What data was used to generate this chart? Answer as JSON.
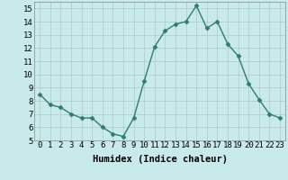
{
  "x": [
    0,
    1,
    2,
    3,
    4,
    5,
    6,
    7,
    8,
    9,
    10,
    11,
    12,
    13,
    14,
    15,
    16,
    17,
    18,
    19,
    20,
    21,
    22,
    23
  ],
  "y": [
    8.5,
    7.7,
    7.5,
    7.0,
    6.7,
    6.7,
    6.0,
    5.5,
    5.3,
    6.7,
    9.5,
    12.1,
    13.3,
    13.8,
    14.0,
    15.2,
    13.5,
    14.0,
    12.3,
    11.4,
    9.3,
    8.1,
    7.0,
    6.7
  ],
  "line_color": "#2e7d6e",
  "marker": "D",
  "marker_size": 2.5,
  "linewidth": 1.0,
  "xlabel": "Humidex (Indice chaleur)",
  "xlim": [
    -0.5,
    23.5
  ],
  "ylim": [
    5,
    15.5
  ],
  "yticks": [
    5,
    6,
    7,
    8,
    9,
    10,
    11,
    12,
    13,
    14,
    15
  ],
  "xticks": [
    0,
    1,
    2,
    3,
    4,
    5,
    6,
    7,
    8,
    9,
    10,
    11,
    12,
    13,
    14,
    15,
    16,
    17,
    18,
    19,
    20,
    21,
    22,
    23
  ],
  "bg_color": "#c8eaea",
  "grid_color": "#b0c8c8",
  "grid_lw": 0.5,
  "tick_fontsize": 6.5,
  "xlabel_fontsize": 7.5
}
